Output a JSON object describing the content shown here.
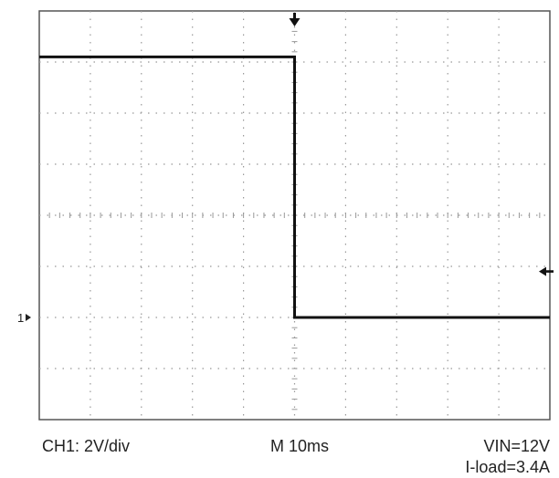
{
  "captions": {
    "channel_scale": "CH1: 2V/div",
    "timebase": "M 10ms",
    "input_voltage": "VIN=12V",
    "load_current": "I-load=3.4A"
  },
  "markers": {
    "channel_marker_label": "1"
  },
  "colors": {
    "trace": "#111111",
    "grid": "#999999",
    "frame": "#555555",
    "background": "#ffffff"
  },
  "chart_data": {
    "type": "line",
    "title": "",
    "xlabel": "",
    "ylabel": "",
    "x_divisions": 10,
    "y_divisions": 8,
    "x_unit_per_div": "10ms",
    "y_unit_per_div": "2V",
    "xlim": [
      -50,
      50
    ],
    "ylim": [
      -2,
      6
    ],
    "grid": true,
    "series": [
      {
        "values_description": "step waveform",
        "x": [
          -50,
          0,
          0,
          50
        ],
        "y": [
          5.1,
          5.1,
          0,
          0
        ]
      }
    ],
    "trigger_time": 0,
    "trigger_level": 0.9
  }
}
